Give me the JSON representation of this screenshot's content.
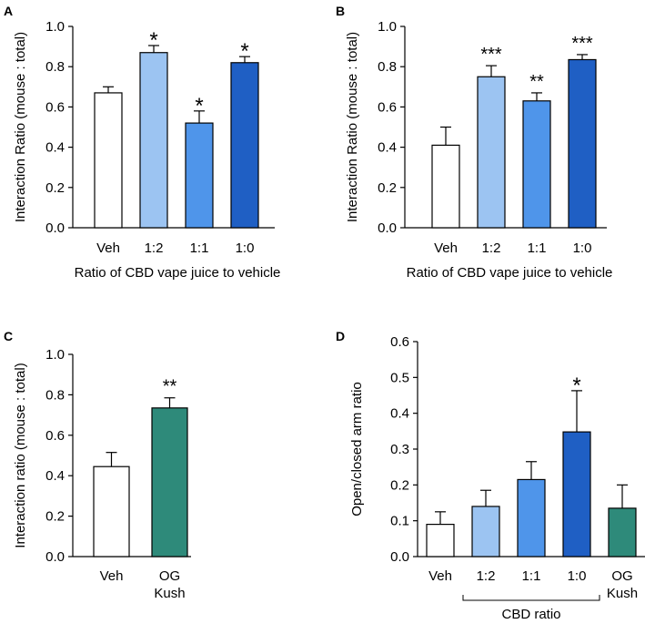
{
  "chart_data": [
    {
      "panel": "A",
      "type": "bar",
      "categories": [
        "Veh",
        "1:2",
        "1:1",
        "1:0"
      ],
      "values": [
        0.67,
        0.87,
        0.52,
        0.82
      ],
      "errors": [
        0.03,
        0.035,
        0.06,
        0.03
      ],
      "colors": [
        "#ffffff",
        "#9cc4f2",
        "#4f95ea",
        "#1f5fc4"
      ],
      "significance": [
        "",
        "*",
        "*",
        "*"
      ],
      "ylabel": "Interaction Ratio (mouse : total)",
      "xlabel": "Ratio of CBD vape juice to vehicle",
      "yticks": [
        "0.0",
        "0.2",
        "0.4",
        "0.6",
        "0.8",
        "1.0"
      ],
      "ylim": [
        0,
        1.0
      ]
    },
    {
      "panel": "B",
      "type": "bar",
      "categories": [
        "Veh",
        "1:2",
        "1:1",
        "1:0"
      ],
      "values": [
        0.41,
        0.75,
        0.63,
        0.835
      ],
      "errors": [
        0.09,
        0.055,
        0.04,
        0.025
      ],
      "colors": [
        "#ffffff",
        "#9cc4f2",
        "#4f95ea",
        "#1f5fc4"
      ],
      "significance": [
        "",
        "***",
        "**",
        "***"
      ],
      "ylabel": "Interaction Ratio (mouse : total)",
      "xlabel": "Ratio of CBD vape juice to vehicle",
      "yticks": [
        "0.0",
        "0.2",
        "0.4",
        "0.6",
        "0.8",
        "1.0"
      ],
      "ylim": [
        0,
        1.0
      ]
    },
    {
      "panel": "C",
      "type": "bar",
      "categories": [
        "Veh",
        "OG\nKush"
      ],
      "values": [
        0.445,
        0.735
      ],
      "errors": [
        0.07,
        0.05
      ],
      "colors": [
        "#ffffff",
        "#2e8a7a"
      ],
      "significance": [
        "",
        "**"
      ],
      "ylabel": "Interaction ratio (mouse : total)",
      "xlabel": "",
      "yticks": [
        "0.0",
        "0.2",
        "0.4",
        "0.6",
        "0.8",
        "1.0"
      ],
      "ylim": [
        0,
        1.0
      ]
    },
    {
      "panel": "D",
      "type": "bar",
      "categories": [
        "Veh",
        "1:2",
        "1:1",
        "1:0",
        "OG\nKush"
      ],
      "values": [
        0.09,
        0.14,
        0.215,
        0.348,
        0.135
      ],
      "errors": [
        0.035,
        0.045,
        0.05,
        0.115,
        0.065
      ],
      "colors": [
        "#ffffff",
        "#9cc4f2",
        "#4f95ea",
        "#1f5fc4",
        "#2e8a7a"
      ],
      "significance": [
        "",
        "",
        "",
        "*",
        ""
      ],
      "ylabel": "Open/closed arm ratio",
      "xlabel": "",
      "bracket_label": "CBD ratio",
      "yticks": [
        "0.0",
        "0.1",
        "0.2",
        "0.3",
        "0.4",
        "0.5",
        "0.6"
      ],
      "ylim": [
        0,
        0.6
      ]
    }
  ]
}
